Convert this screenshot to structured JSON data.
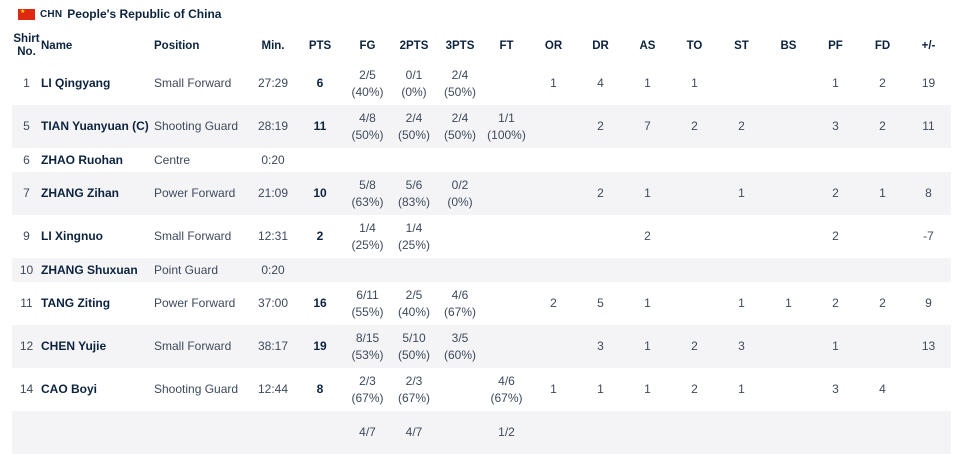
{
  "team": {
    "code": "CHN",
    "name": "People's Republic of China",
    "flag_color": "#de2910"
  },
  "columns": [
    {
      "key": "no",
      "label": "Shirt No."
    },
    {
      "key": "name",
      "label": "Name"
    },
    {
      "key": "pos",
      "label": "Position"
    },
    {
      "key": "min",
      "label": "Min."
    },
    {
      "key": "pts",
      "label": "PTS"
    },
    {
      "key": "fg",
      "label": "FG"
    },
    {
      "key": "p2",
      "label": "2PTS"
    },
    {
      "key": "p3",
      "label": "3PTS"
    },
    {
      "key": "ft",
      "label": "FT"
    },
    {
      "key": "or",
      "label": "OR"
    },
    {
      "key": "dr",
      "label": "DR"
    },
    {
      "key": "as",
      "label": "AS"
    },
    {
      "key": "to",
      "label": "TO"
    },
    {
      "key": "st",
      "label": "ST"
    },
    {
      "key": "bs",
      "label": "BS"
    },
    {
      "key": "pf",
      "label": "PF"
    },
    {
      "key": "fd",
      "label": "FD"
    },
    {
      "key": "pm",
      "label": "+/-"
    }
  ],
  "players": [
    {
      "no": "1",
      "name": "LI Qingyang",
      "pos": "Small Forward",
      "min": "27:29",
      "pts": "6",
      "fg": [
        "2/5",
        "(40%)"
      ],
      "p2": [
        "0/1",
        "(0%)"
      ],
      "p3": [
        "2/4",
        "(50%)"
      ],
      "ft": [
        "",
        ""
      ],
      "or": "1",
      "dr": "4",
      "as": "1",
      "to": "1",
      "st": "",
      "bs": "",
      "pf": "1",
      "fd": "2",
      "pm": "19"
    },
    {
      "no": "5",
      "name": "TIAN Yuanyuan  (C)",
      "pos": "Shooting Guard",
      "min": "28:19",
      "pts": "11",
      "fg": [
        "4/8",
        "(50%)"
      ],
      "p2": [
        "2/4",
        "(50%)"
      ],
      "p3": [
        "2/4",
        "(50%)"
      ],
      "ft": [
        "1/1",
        "(100%)"
      ],
      "or": "",
      "dr": "2",
      "as": "7",
      "to": "2",
      "st": "2",
      "bs": "",
      "pf": "3",
      "fd": "2",
      "pm": "11"
    },
    {
      "no": "6",
      "name": "ZHAO Ruohan",
      "pos": "Centre",
      "min": "0:20",
      "pts": "",
      "fg": [
        "",
        ""
      ],
      "p2": [
        "",
        ""
      ],
      "p3": [
        "",
        ""
      ],
      "ft": [
        "",
        ""
      ],
      "or": "",
      "dr": "",
      "as": "",
      "to": "",
      "st": "",
      "bs": "",
      "pf": "",
      "fd": "",
      "pm": ""
    },
    {
      "no": "7",
      "name": "ZHANG Zihan",
      "pos": "Power Forward",
      "min": "21:09",
      "pts": "10",
      "fg": [
        "5/8",
        "(63%)"
      ],
      "p2": [
        "5/6",
        "(83%)"
      ],
      "p3": [
        "0/2",
        "(0%)"
      ],
      "ft": [
        "",
        ""
      ],
      "or": "",
      "dr": "2",
      "as": "1",
      "to": "",
      "st": "1",
      "bs": "",
      "pf": "2",
      "fd": "1",
      "pm": "8"
    },
    {
      "no": "9",
      "name": "LI Xingnuo",
      "pos": "Small Forward",
      "min": "12:31",
      "pts": "2",
      "fg": [
        "1/4",
        "(25%)"
      ],
      "p2": [
        "1/4",
        "(25%)"
      ],
      "p3": [
        "",
        ""
      ],
      "ft": [
        "",
        ""
      ],
      "or": "",
      "dr": "",
      "as": "2",
      "to": "",
      "st": "",
      "bs": "",
      "pf": "2",
      "fd": "",
      "pm": "-7"
    },
    {
      "no": "10",
      "name": "ZHANG Shuxuan",
      "pos": "Point Guard",
      "min": "0:20",
      "pts": "",
      "fg": [
        "",
        ""
      ],
      "p2": [
        "",
        ""
      ],
      "p3": [
        "",
        ""
      ],
      "ft": [
        "",
        ""
      ],
      "or": "",
      "dr": "",
      "as": "",
      "to": "",
      "st": "",
      "bs": "",
      "pf": "",
      "fd": "",
      "pm": ""
    },
    {
      "no": "11",
      "name": "TANG Ziting",
      "pos": "Power Forward",
      "min": "37:00",
      "pts": "16",
      "fg": [
        "6/11",
        "(55%)"
      ],
      "p2": [
        "2/5",
        "(40%)"
      ],
      "p3": [
        "4/6",
        "(67%)"
      ],
      "ft": [
        "",
        ""
      ],
      "or": "2",
      "dr": "5",
      "as": "1",
      "to": "",
      "st": "1",
      "bs": "1",
      "pf": "2",
      "fd": "2",
      "pm": "9"
    },
    {
      "no": "12",
      "name": "CHEN Yujie",
      "pos": "Small Forward",
      "min": "38:17",
      "pts": "19",
      "fg": [
        "8/15",
        "(53%)"
      ],
      "p2": [
        "5/10",
        "(50%)"
      ],
      "p3": [
        "3/5",
        "(60%)"
      ],
      "ft": [
        "",
        ""
      ],
      "or": "",
      "dr": "3",
      "as": "1",
      "to": "2",
      "st": "3",
      "bs": "",
      "pf": "1",
      "fd": "",
      "pm": "13"
    },
    {
      "no": "14",
      "name": "CAO Boyi",
      "pos": "Shooting Guard",
      "min": "12:44",
      "pts": "8",
      "fg": [
        "2/3",
        "(67%)"
      ],
      "p2": [
        "2/3",
        "(67%)"
      ],
      "p3": [
        "",
        ""
      ],
      "ft": [
        "4/6",
        "(67%)"
      ],
      "or": "1",
      "dr": "1",
      "as": "1",
      "to": "2",
      "st": "1",
      "bs": "",
      "pf": "3",
      "fd": "4",
      "pm": ""
    },
    {
      "no": "",
      "name": "",
      "pos": "",
      "min": "",
      "pts": "",
      "fg": [
        "4/7",
        ""
      ],
      "p2": [
        "4/7",
        ""
      ],
      "p3": [
        "",
        ""
      ],
      "ft": [
        "1/2",
        ""
      ],
      "or": "",
      "dr": "",
      "as": "",
      "to": "",
      "st": "",
      "bs": "",
      "pf": "",
      "fd": "",
      "pm": ""
    }
  ]
}
